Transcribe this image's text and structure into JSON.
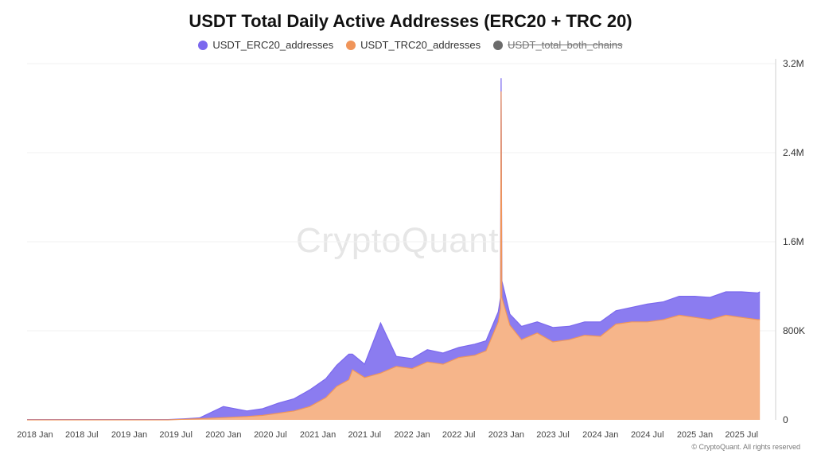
{
  "chart_data": {
    "type": "area",
    "title": "USDT Total Daily Active Addresses (ERC20 + TRC 20)",
    "legend": [
      {
        "name": "USDT_ERC20_addresses",
        "color": "#7b68ee",
        "hidden": false
      },
      {
        "name": "USDT_TRC20_addresses",
        "color": "#f0955a",
        "hidden": false
      },
      {
        "name": "USDT_total_both_chains",
        "color": "#6b6b6b",
        "hidden": true
      }
    ],
    "x_ticks": [
      "2018 Jan",
      "2018 Jul",
      "2019 Jan",
      "2019 Jul",
      "2020 Jan",
      "2020 Jul",
      "2021 Jan",
      "2021 Jul",
      "2022 Jan",
      "2022 Jul",
      "2023 Jan",
      "2023 Jul",
      "2024 Jan",
      "2024 Jul",
      "2025 Jan",
      "2025 Jul"
    ],
    "y_ticks": [
      "0",
      "800K",
      "1.6M",
      "2.4M",
      "3.2M"
    ],
    "ylim": [
      0,
      3200000
    ],
    "xlim": [
      "2017-12-01",
      "2025-10-01"
    ],
    "series": [
      {
        "name": "USDT_TRC20_addresses",
        "color": "#f0955a",
        "fill": "#f6b58a",
        "points": [
          [
            "2017-12-01",
            0
          ],
          [
            "2019-06-01",
            0
          ],
          [
            "2019-08-01",
            5000
          ],
          [
            "2019-10-01",
            10000
          ],
          [
            "2020-01-01",
            20000
          ],
          [
            "2020-04-01",
            30000
          ],
          [
            "2020-06-01",
            40000
          ],
          [
            "2020-08-01",
            60000
          ],
          [
            "2020-10-01",
            80000
          ],
          [
            "2020-12-01",
            120000
          ],
          [
            "2021-02-01",
            200000
          ],
          [
            "2021-03-15",
            300000
          ],
          [
            "2021-05-01",
            360000
          ],
          [
            "2021-05-15",
            450000
          ],
          [
            "2021-07-01",
            380000
          ],
          [
            "2021-09-01",
            420000
          ],
          [
            "2021-11-01",
            480000
          ],
          [
            "2022-01-01",
            460000
          ],
          [
            "2022-03-01",
            520000
          ],
          [
            "2022-05-01",
            500000
          ],
          [
            "2022-07-01",
            560000
          ],
          [
            "2022-09-01",
            580000
          ],
          [
            "2022-10-15",
            620000
          ],
          [
            "2022-12-01",
            880000
          ],
          [
            "2022-12-10",
            1000000
          ],
          [
            "2022-12-12",
            2950000
          ],
          [
            "2022-12-15",
            1100000
          ],
          [
            "2023-01-15",
            850000
          ],
          [
            "2023-03-01",
            720000
          ],
          [
            "2023-05-01",
            780000
          ],
          [
            "2023-07-01",
            700000
          ],
          [
            "2023-09-01",
            720000
          ],
          [
            "2023-11-01",
            760000
          ],
          [
            "2024-01-01",
            750000
          ],
          [
            "2024-03-01",
            860000
          ],
          [
            "2024-05-01",
            880000
          ],
          [
            "2024-07-01",
            880000
          ],
          [
            "2024-09-01",
            900000
          ],
          [
            "2024-11-01",
            940000
          ],
          [
            "2025-01-01",
            920000
          ],
          [
            "2025-03-01",
            900000
          ],
          [
            "2025-05-01",
            940000
          ],
          [
            "2025-07-01",
            920000
          ],
          [
            "2025-09-01",
            900000
          ],
          [
            "2025-09-10",
            900000
          ]
        ]
      },
      {
        "name": "USDT_ERC20_addresses",
        "color": "#7b68ee",
        "fill": "#8b7cf0",
        "points": [
          [
            "2017-12-01",
            3000
          ],
          [
            "2018-06-01",
            3000
          ],
          [
            "2019-01-01",
            4000
          ],
          [
            "2019-06-01",
            8000
          ],
          [
            "2019-08-01",
            100000
          ],
          [
            "2019-10-01",
            50000
          ],
          [
            "2020-01-01",
            60000
          ],
          [
            "2020-04-01",
            90000
          ],
          [
            "2020-06-01",
            110000
          ],
          [
            "2020-08-01",
            150000
          ],
          [
            "2020-10-01",
            170000
          ],
          [
            "2020-12-01",
            190000
          ],
          [
            "2021-02-01",
            230000
          ],
          [
            "2021-03-15",
            140000
          ],
          [
            "2021-05-01",
            120000
          ],
          [
            "2021-05-15",
            450000
          ],
          [
            "2021-07-01",
            90000
          ],
          [
            "2021-09-01",
            90000
          ],
          [
            "2021-11-01",
            110000
          ],
          [
            "2022-01-01",
            100000
          ],
          [
            "2022-03-01",
            90000
          ],
          [
            "2022-05-01",
            100000
          ],
          [
            "2022-07-01",
            90000
          ],
          [
            "2022-09-01",
            90000
          ],
          [
            "2022-10-15",
            100000
          ],
          [
            "2022-12-01",
            120000
          ],
          [
            "2022-12-10",
            150000
          ],
          [
            "2022-12-12",
            100000
          ],
          [
            "2022-12-15",
            120000
          ],
          [
            "2023-01-15",
            100000
          ],
          [
            "2023-03-01",
            130000
          ],
          [
            "2023-05-01",
            120000
          ],
          [
            "2023-07-01",
            120000
          ],
          [
            "2023-09-01",
            130000
          ],
          [
            "2023-11-01",
            120000
          ],
          [
            "2024-01-01",
            130000
          ],
          [
            "2024-03-01",
            160000
          ],
          [
            "2024-05-01",
            160000
          ],
          [
            "2024-07-01",
            170000
          ],
          [
            "2024-09-01",
            190000
          ],
          [
            "2024-11-01",
            200000
          ],
          [
            "2025-01-01",
            210000
          ],
          [
            "2025-03-01",
            230000
          ],
          [
            "2025-05-01",
            240000
          ],
          [
            "2025-07-01",
            250000
          ],
          [
            "2025-09-01",
            260000
          ],
          [
            "2025-09-10",
            260000
          ]
        ]
      }
    ]
  },
  "watermark": "CryptoQuant",
  "credit": "© CryptoQuant. All rights reserved"
}
